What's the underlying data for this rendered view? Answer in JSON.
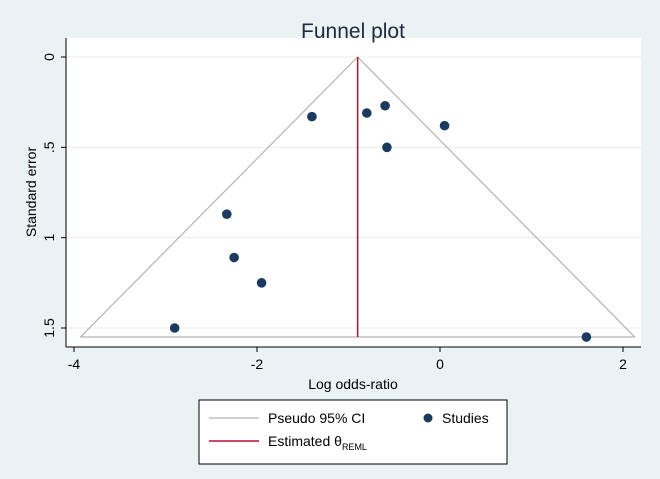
{
  "chart_data": {
    "type": "scatter",
    "title": "Funnel plot",
    "xlabel": "Log odds-ratio",
    "ylabel": "Standard error",
    "xlim": [
      -4,
      2
    ],
    "ylim": [
      1.55,
      0
    ],
    "y_reversed": true,
    "xticks": [
      -4,
      -2,
      0,
      2
    ],
    "xtick_labels": [
      "-4",
      "-2",
      "0",
      "2"
    ],
    "yticks": [
      0,
      0.5,
      1,
      1.5
    ],
    "ytick_labels": [
      "0",
      ".5",
      "1",
      "1.5"
    ],
    "grid": "horizontal",
    "legend_position": "bottom",
    "estimate": -0.9,
    "ci_lines": {
      "apex": [
        -0.9,
        0
      ],
      "left_base": [
        -3.93,
        1.55
      ],
      "right_base": [
        2.13,
        1.55
      ]
    },
    "series": [
      {
        "name": "Studies",
        "points": [
          {
            "x": -1.4,
            "y": 0.33
          },
          {
            "x": -0.8,
            "y": 0.31
          },
          {
            "x": -0.6,
            "y": 0.27
          },
          {
            "x": 0.05,
            "y": 0.38
          },
          {
            "x": -0.58,
            "y": 0.5
          },
          {
            "x": -2.33,
            "y": 0.87
          },
          {
            "x": -2.25,
            "y": 1.11
          },
          {
            "x": -1.95,
            "y": 1.25
          },
          {
            "x": -2.9,
            "y": 1.5
          },
          {
            "x": 1.6,
            "y": 1.55
          }
        ]
      }
    ],
    "legend": {
      "ci_label": "Pseudo 95% CI",
      "studies_label": "Studies",
      "estimate_label": "Estimated θ",
      "estimate_subscript": "REML"
    }
  },
  "colors": {
    "background": "#eaf2f3",
    "plot_background": "#ffffff",
    "ci_line": "#b3b3b3",
    "estimate_line": "#b5102d",
    "point": "#1a3a5e",
    "grid": "#e6ecef",
    "title": "#1c2b3c"
  }
}
